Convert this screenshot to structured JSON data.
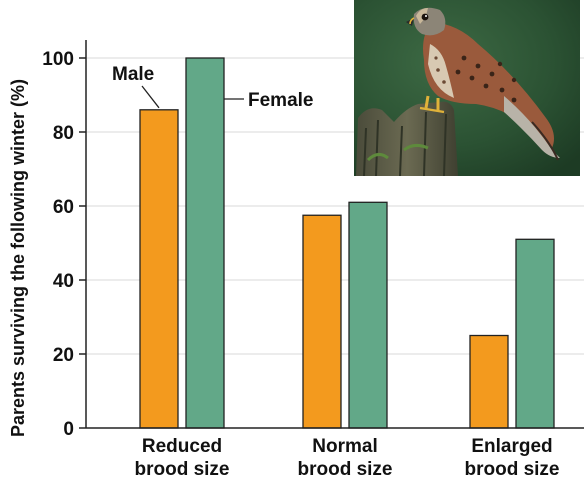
{
  "chart_data": {
    "type": "bar",
    "categories": [
      "Reduced\nbrood size",
      "Normal\nbrood size",
      "Enlarged\nbrood size"
    ],
    "series": [
      {
        "name": "Male",
        "values": [
          86,
          57.5,
          25
        ],
        "color": "#f39a1e"
      },
      {
        "name": "Female",
        "values": [
          100,
          61,
          51
        ],
        "color": "#62a888"
      }
    ],
    "ylabel": "Parents surviving the following winter (%)",
    "xlabel": "",
    "ylim": [
      0,
      100
    ],
    "yticks": [
      0,
      20,
      40,
      60,
      80,
      100
    ],
    "grid": true,
    "legend": "annotations at first category bars"
  },
  "photo": {
    "subject": "kestrel-perched-on-post"
  }
}
